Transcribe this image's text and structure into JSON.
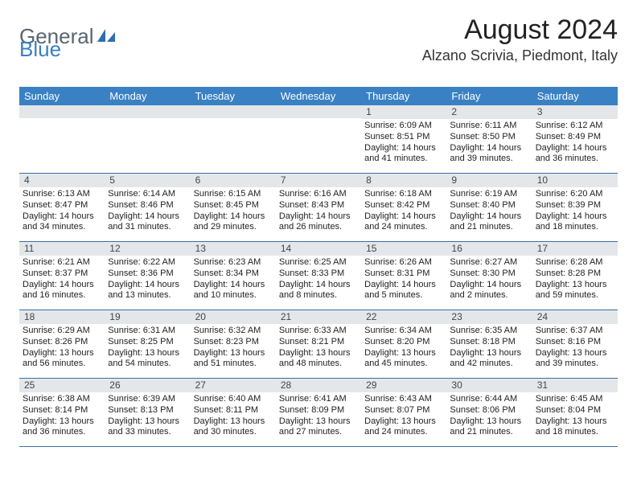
{
  "logo": {
    "text_a": "General",
    "text_b": "Blue"
  },
  "title": "August 2024",
  "location": "Alzano Scrivia, Piedmont, Italy",
  "colors": {
    "header_bg": "#3a81c4",
    "header_text": "#ffffff",
    "daynum_bg": "#e4e7ea",
    "row_border": "#3a6fa0",
    "logo_gray": "#5a6570",
    "logo_blue": "#3a7fc4",
    "page_bg": "#ffffff",
    "body_text": "#222222"
  },
  "typography": {
    "title_fontsize": 34,
    "location_fontsize": 18,
    "weekday_fontsize": 13,
    "daynum_fontsize": 12,
    "body_fontsize": 11
  },
  "weekdays": [
    "Sunday",
    "Monday",
    "Tuesday",
    "Wednesday",
    "Thursday",
    "Friday",
    "Saturday"
  ],
  "weeks": [
    [
      {
        "n": "",
        "sr": "",
        "ss": "",
        "dl": ""
      },
      {
        "n": "",
        "sr": "",
        "ss": "",
        "dl": ""
      },
      {
        "n": "",
        "sr": "",
        "ss": "",
        "dl": ""
      },
      {
        "n": "",
        "sr": "",
        "ss": "",
        "dl": ""
      },
      {
        "n": "1",
        "sr": "Sunrise: 6:09 AM",
        "ss": "Sunset: 8:51 PM",
        "dl": "Daylight: 14 hours and 41 minutes."
      },
      {
        "n": "2",
        "sr": "Sunrise: 6:11 AM",
        "ss": "Sunset: 8:50 PM",
        "dl": "Daylight: 14 hours and 39 minutes."
      },
      {
        "n": "3",
        "sr": "Sunrise: 6:12 AM",
        "ss": "Sunset: 8:49 PM",
        "dl": "Daylight: 14 hours and 36 minutes."
      }
    ],
    [
      {
        "n": "4",
        "sr": "Sunrise: 6:13 AM",
        "ss": "Sunset: 8:47 PM",
        "dl": "Daylight: 14 hours and 34 minutes."
      },
      {
        "n": "5",
        "sr": "Sunrise: 6:14 AM",
        "ss": "Sunset: 8:46 PM",
        "dl": "Daylight: 14 hours and 31 minutes."
      },
      {
        "n": "6",
        "sr": "Sunrise: 6:15 AM",
        "ss": "Sunset: 8:45 PM",
        "dl": "Daylight: 14 hours and 29 minutes."
      },
      {
        "n": "7",
        "sr": "Sunrise: 6:16 AM",
        "ss": "Sunset: 8:43 PM",
        "dl": "Daylight: 14 hours and 26 minutes."
      },
      {
        "n": "8",
        "sr": "Sunrise: 6:18 AM",
        "ss": "Sunset: 8:42 PM",
        "dl": "Daylight: 14 hours and 24 minutes."
      },
      {
        "n": "9",
        "sr": "Sunrise: 6:19 AM",
        "ss": "Sunset: 8:40 PM",
        "dl": "Daylight: 14 hours and 21 minutes."
      },
      {
        "n": "10",
        "sr": "Sunrise: 6:20 AM",
        "ss": "Sunset: 8:39 PM",
        "dl": "Daylight: 14 hours and 18 minutes."
      }
    ],
    [
      {
        "n": "11",
        "sr": "Sunrise: 6:21 AM",
        "ss": "Sunset: 8:37 PM",
        "dl": "Daylight: 14 hours and 16 minutes."
      },
      {
        "n": "12",
        "sr": "Sunrise: 6:22 AM",
        "ss": "Sunset: 8:36 PM",
        "dl": "Daylight: 14 hours and 13 minutes."
      },
      {
        "n": "13",
        "sr": "Sunrise: 6:23 AM",
        "ss": "Sunset: 8:34 PM",
        "dl": "Daylight: 14 hours and 10 minutes."
      },
      {
        "n": "14",
        "sr": "Sunrise: 6:25 AM",
        "ss": "Sunset: 8:33 PM",
        "dl": "Daylight: 14 hours and 8 minutes."
      },
      {
        "n": "15",
        "sr": "Sunrise: 6:26 AM",
        "ss": "Sunset: 8:31 PM",
        "dl": "Daylight: 14 hours and 5 minutes."
      },
      {
        "n": "16",
        "sr": "Sunrise: 6:27 AM",
        "ss": "Sunset: 8:30 PM",
        "dl": "Daylight: 14 hours and 2 minutes."
      },
      {
        "n": "17",
        "sr": "Sunrise: 6:28 AM",
        "ss": "Sunset: 8:28 PM",
        "dl": "Daylight: 13 hours and 59 minutes."
      }
    ],
    [
      {
        "n": "18",
        "sr": "Sunrise: 6:29 AM",
        "ss": "Sunset: 8:26 PM",
        "dl": "Daylight: 13 hours and 56 minutes."
      },
      {
        "n": "19",
        "sr": "Sunrise: 6:31 AM",
        "ss": "Sunset: 8:25 PM",
        "dl": "Daylight: 13 hours and 54 minutes."
      },
      {
        "n": "20",
        "sr": "Sunrise: 6:32 AM",
        "ss": "Sunset: 8:23 PM",
        "dl": "Daylight: 13 hours and 51 minutes."
      },
      {
        "n": "21",
        "sr": "Sunrise: 6:33 AM",
        "ss": "Sunset: 8:21 PM",
        "dl": "Daylight: 13 hours and 48 minutes."
      },
      {
        "n": "22",
        "sr": "Sunrise: 6:34 AM",
        "ss": "Sunset: 8:20 PM",
        "dl": "Daylight: 13 hours and 45 minutes."
      },
      {
        "n": "23",
        "sr": "Sunrise: 6:35 AM",
        "ss": "Sunset: 8:18 PM",
        "dl": "Daylight: 13 hours and 42 minutes."
      },
      {
        "n": "24",
        "sr": "Sunrise: 6:37 AM",
        "ss": "Sunset: 8:16 PM",
        "dl": "Daylight: 13 hours and 39 minutes."
      }
    ],
    [
      {
        "n": "25",
        "sr": "Sunrise: 6:38 AM",
        "ss": "Sunset: 8:14 PM",
        "dl": "Daylight: 13 hours and 36 minutes."
      },
      {
        "n": "26",
        "sr": "Sunrise: 6:39 AM",
        "ss": "Sunset: 8:13 PM",
        "dl": "Daylight: 13 hours and 33 minutes."
      },
      {
        "n": "27",
        "sr": "Sunrise: 6:40 AM",
        "ss": "Sunset: 8:11 PM",
        "dl": "Daylight: 13 hours and 30 minutes."
      },
      {
        "n": "28",
        "sr": "Sunrise: 6:41 AM",
        "ss": "Sunset: 8:09 PM",
        "dl": "Daylight: 13 hours and 27 minutes."
      },
      {
        "n": "29",
        "sr": "Sunrise: 6:43 AM",
        "ss": "Sunset: 8:07 PM",
        "dl": "Daylight: 13 hours and 24 minutes."
      },
      {
        "n": "30",
        "sr": "Sunrise: 6:44 AM",
        "ss": "Sunset: 8:06 PM",
        "dl": "Daylight: 13 hours and 21 minutes."
      },
      {
        "n": "31",
        "sr": "Sunrise: 6:45 AM",
        "ss": "Sunset: 8:04 PM",
        "dl": "Daylight: 13 hours and 18 minutes."
      }
    ]
  ]
}
